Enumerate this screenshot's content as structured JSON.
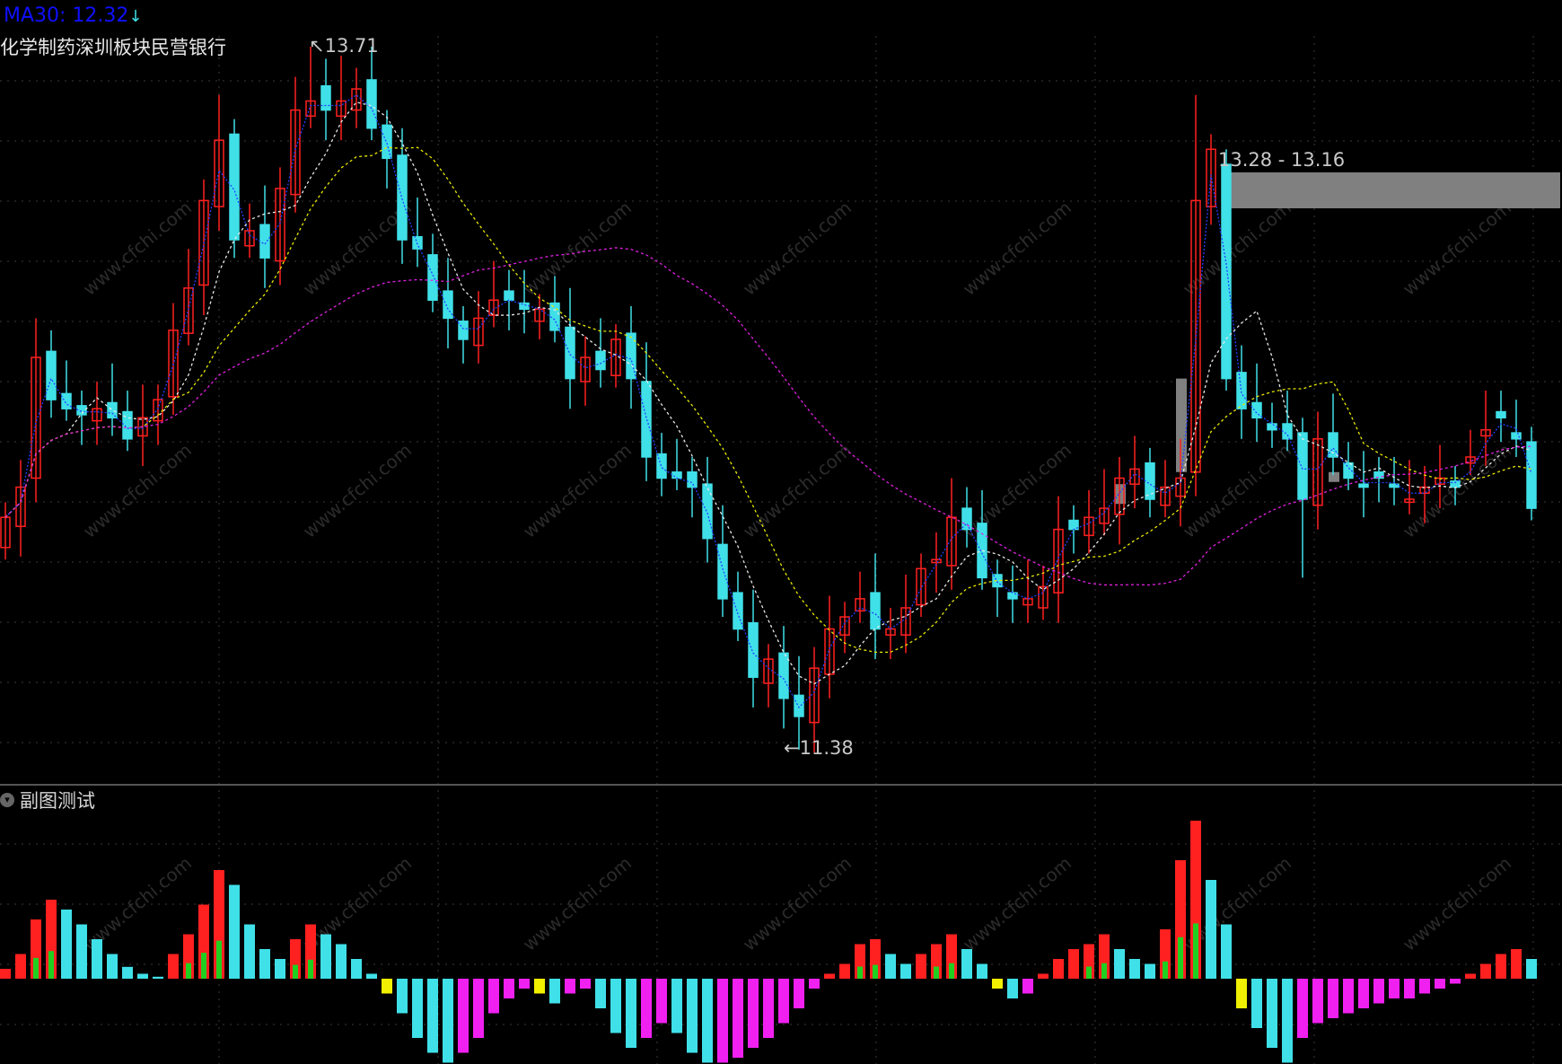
{
  "header": {
    "ma_label": "MA30: 12.32",
    "ma_arrow": "↓",
    "sector_tags": "化学制药深圳板块民营银行"
  },
  "sub_panel": {
    "title": "副图测试",
    "toggle_icon": "chevron-down-icon"
  },
  "watermark": "www.cfchi.com",
  "annotations": {
    "high_label": "13.71",
    "low_label": "11.38",
    "zone_label": "13.28 - 13.16"
  },
  "colors": {
    "up": "#ff2020",
    "down": "#40e0e8",
    "ma_fast": "#2040ff",
    "ma5": "#e8e8e8",
    "ma10": "#e8e800",
    "ma30": "#e020e0",
    "zone": "#808080",
    "hist_neg_start": "#f0f000",
    "hist_neg_recover": "#f020f0"
  },
  "chart_data": [
    {
      "type": "candlestick",
      "title": "",
      "ylim": [
        11.3,
        13.85
      ],
      "grid": true,
      "moving_averages": [
        2,
        5,
        10,
        30
      ],
      "open": [
        12.05,
        12.12,
        12.28,
        12.7,
        12.56,
        12.52,
        12.47,
        12.53,
        12.5,
        12.42,
        12.47,
        12.55,
        12.76,
        12.92,
        13.18,
        13.42,
        13.05,
        13.12,
        13.0,
        13.22,
        13.48,
        13.58,
        13.48,
        13.5,
        13.6,
        13.45,
        13.35,
        13.08,
        13.02,
        12.9,
        12.8,
        12.72,
        12.82,
        12.9,
        12.86,
        12.8,
        12.86,
        12.78,
        12.6,
        12.7,
        12.62,
        12.76,
        12.6,
        12.36,
        12.3,
        12.3,
        12.26,
        12.06,
        11.9,
        11.8,
        11.6,
        11.7,
        11.56,
        11.47,
        11.63,
        11.76,
        11.84,
        11.9,
        11.76,
        11.76,
        11.86,
        12.0,
        11.99,
        12.18,
        12.13,
        11.96,
        11.9,
        11.86,
        11.85,
        11.9,
        12.14,
        12.09,
        12.13,
        12.16,
        12.26,
        12.33,
        12.19,
        12.22,
        12.3,
        13.18,
        13.32,
        12.63,
        12.53,
        12.46,
        12.46,
        12.43,
        12.19,
        12.43,
        12.33,
        12.26,
        12.3,
        12.26,
        12.2,
        12.23,
        12.26,
        12.27,
        12.33,
        12.42,
        12.5,
        12.43,
        12.4
      ],
      "close": [
        12.15,
        12.25,
        12.68,
        12.54,
        12.51,
        12.49,
        12.51,
        12.48,
        12.41,
        12.48,
        12.54,
        12.77,
        12.91,
        13.2,
        13.4,
        13.07,
        13.1,
        13.01,
        13.24,
        13.5,
        13.53,
        13.5,
        13.53,
        13.57,
        13.44,
        13.34,
        13.07,
        13.04,
        12.87,
        12.81,
        12.74,
        12.81,
        12.87,
        12.87,
        12.84,
        12.84,
        12.77,
        12.61,
        12.68,
        12.64,
        12.74,
        12.61,
        12.35,
        12.28,
        12.28,
        12.25,
        12.08,
        11.88,
        11.78,
        11.62,
        11.68,
        11.55,
        11.49,
        11.65,
        11.78,
        11.82,
        11.88,
        11.78,
        11.78,
        11.85,
        11.98,
        12.01,
        12.15,
        12.11,
        11.95,
        11.92,
        11.88,
        11.88,
        11.92,
        12.11,
        12.11,
        12.15,
        12.18,
        12.28,
        12.31,
        12.21,
        12.25,
        12.28,
        13.2,
        13.37,
        12.61,
        12.51,
        12.48,
        12.44,
        12.41,
        12.21,
        12.41,
        12.35,
        12.28,
        12.25,
        12.28,
        12.25,
        12.21,
        12.25,
        12.28,
        12.25,
        12.35,
        12.44,
        12.48,
        12.41,
        12.18
      ],
      "high_overrides": {
        "14": 13.55,
        "20": 13.71,
        "22": 13.68,
        "78": 13.55,
        "79": 13.42
      },
      "low_overrides": {
        "52": 11.38,
        "51": 11.45,
        "85": 11.95
      },
      "price_zone": {
        "from": 13.28,
        "to": 13.16,
        "start_index": 80
      }
    },
    {
      "type": "bar",
      "title": "副图测试",
      "values": [
        10,
        25,
        60,
        80,
        70,
        55,
        40,
        25,
        12,
        5,
        2,
        25,
        45,
        75,
        110,
        95,
        55,
        30,
        20,
        40,
        55,
        45,
        35,
        20,
        5,
        -15,
        -35,
        -60,
        -75,
        -85,
        -75,
        -60,
        -35,
        -20,
        -10,
        -15,
        -25,
        -15,
        -10,
        -30,
        -55,
        -70,
        -60,
        -45,
        -55,
        -75,
        -85,
        -85,
        -80,
        -70,
        -60,
        -45,
        -30,
        -10,
        5,
        15,
        35,
        40,
        25,
        15,
        25,
        35,
        45,
        30,
        15,
        -10,
        -20,
        -15,
        5,
        20,
        30,
        35,
        45,
        30,
        20,
        15,
        50,
        120,
        160,
        100,
        55,
        -30,
        -50,
        -70,
        -85,
        -60,
        -45,
        -40,
        -35,
        -30,
        -25,
        -20,
        -20,
        -15,
        -10,
        -5,
        5,
        15,
        25,
        30,
        20
      ]
    }
  ]
}
